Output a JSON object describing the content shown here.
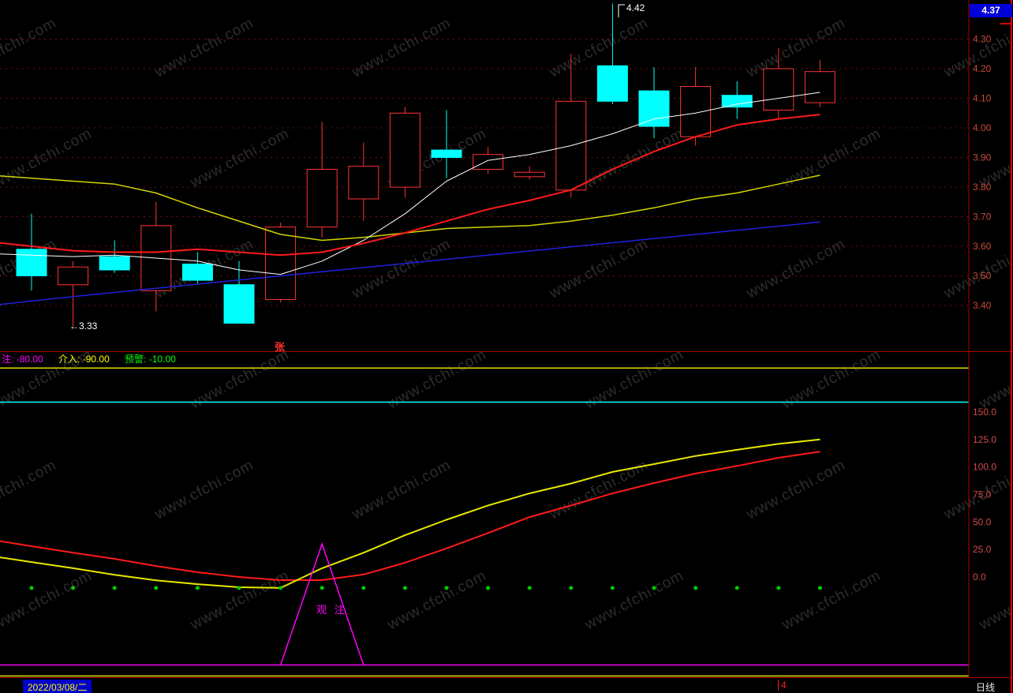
{
  "watermark": {
    "text": "www.cfchi.com"
  },
  "main_chart": {
    "current_price": "4.37",
    "current_price_bg": "#0000d8",
    "high_annotation": "4.42",
    "low_annotation": "←3.33",
    "event_mark": "张",
    "axis_labels": [
      "4.30",
      "4.20",
      "4.10",
      "4.00",
      "3.90",
      "3.80",
      "3.70",
      "3.60",
      "3.50",
      "3.40"
    ]
  },
  "indicator": {
    "header": [
      {
        "label": "注: -80.00",
        "color": "#ff00ff"
      },
      {
        "label": "介入: -90.00",
        "color": "#ffff00"
      },
      {
        "label": "预警: -10.00",
        "color": "#00ff00"
      }
    ],
    "axis_labels": [
      "150.0",
      "125.0",
      "100.0",
      "75.0",
      "50.0",
      "25.0",
      "0.0"
    ],
    "spike_label": "观 注"
  },
  "status_bar": {
    "date": "2022/03/08/二",
    "marker": "4",
    "period": "日线"
  },
  "chart_data": [
    {
      "type": "candlestick",
      "name": "daily-price-panel",
      "ylim": [
        3.33,
        4.45
      ],
      "y_ticks": [
        4.3,
        4.2,
        4.1,
        4.0,
        3.9,
        3.8,
        3.7,
        3.6,
        3.5,
        3.4
      ],
      "grid_color": "#6b1111",
      "axis_color": "#c84a3a",
      "up_color": "#ff3232",
      "down_color": "#00ffff",
      "high_point": {
        "index": 14,
        "price": 4.42
      },
      "low_point": {
        "index": 1,
        "price": 3.33
      },
      "candles": [
        {
          "open": 3.59,
          "high": 3.71,
          "low": 3.45,
          "close": 3.5
        },
        {
          "open": 3.47,
          "high": 3.55,
          "low": 3.33,
          "close": 3.53
        },
        {
          "open": 3.565,
          "high": 3.62,
          "low": 3.51,
          "close": 3.52
        },
        {
          "open": 3.45,
          "high": 3.75,
          "low": 3.38,
          "close": 3.67
        },
        {
          "open": 3.54,
          "high": 3.58,
          "low": 3.47,
          "close": 3.485
        },
        {
          "open": 3.47,
          "high": 3.55,
          "low": 3.34,
          "close": 3.34
        },
        {
          "open": 3.42,
          "high": 3.68,
          "low": 3.41,
          "close": 3.665
        },
        {
          "open": 3.665,
          "high": 4.02,
          "low": 3.63,
          "close": 3.86
        },
        {
          "open": 3.76,
          "high": 3.95,
          "low": 3.685,
          "close": 3.87
        },
        {
          "open": 3.8,
          "high": 4.07,
          "low": 3.765,
          "close": 4.05
        },
        {
          "open": 3.925,
          "high": 4.06,
          "low": 3.83,
          "close": 3.9
        },
        {
          "open": 3.86,
          "high": 3.935,
          "low": 3.845,
          "close": 3.91
        },
        {
          "open": 3.835,
          "high": 3.87,
          "low": 3.825,
          "close": 3.85
        },
        {
          "open": 3.79,
          "high": 4.25,
          "low": 3.765,
          "close": 4.09
        },
        {
          "open": 4.21,
          "high": 4.42,
          "low": 4.08,
          "close": 4.09
        },
        {
          "open": 4.125,
          "high": 4.205,
          "low": 3.965,
          "close": 4.005
        },
        {
          "open": 3.97,
          "high": 4.205,
          "low": 3.94,
          "close": 4.14
        },
        {
          "open": 4.11,
          "high": 4.157,
          "low": 4.03,
          "close": 4.07
        },
        {
          "open": 4.06,
          "high": 4.27,
          "low": 4.03,
          "close": 4.2
        },
        {
          "open": 4.085,
          "high": 4.23,
          "low": 4.07,
          "close": 4.19
        }
      ],
      "overlays": [
        {
          "name": "ma-yellow",
          "color": "#d4d400",
          "width": 1.5,
          "values": [
            3.83,
            3.82,
            3.81,
            3.78,
            3.73,
            3.685,
            3.64,
            3.62,
            3.63,
            3.645,
            3.66,
            3.665,
            3.67,
            3.685,
            3.705,
            3.73,
            3.76,
            3.78,
            3.81,
            3.84
          ]
        },
        {
          "name": "ma-blue",
          "color": "#2020dd",
          "width": 1.5,
          "values": [
            3.415,
            3.43,
            3.444,
            3.458,
            3.472,
            3.486,
            3.5,
            3.514,
            3.528,
            3.542,
            3.556,
            3.57,
            3.584,
            3.598,
            3.612,
            3.626,
            3.64,
            3.654,
            3.668,
            3.682
          ]
        },
        {
          "name": "ma-white",
          "color": "#ffffff",
          "width": 1,
          "values": [
            3.57,
            3.565,
            3.57,
            3.56,
            3.55,
            3.52,
            3.505,
            3.55,
            3.62,
            3.71,
            3.82,
            3.89,
            3.91,
            3.94,
            3.98,
            4.03,
            4.05,
            4.08,
            4.1,
            4.12
          ]
        },
        {
          "name": "ma-red",
          "color": "#ff1a1a",
          "width": 2,
          "values": [
            3.6,
            3.585,
            3.58,
            3.58,
            3.59,
            3.58,
            3.57,
            3.58,
            3.61,
            3.645,
            3.685,
            3.725,
            3.755,
            3.79,
            3.86,
            3.92,
            3.97,
            4.01,
            4.03,
            4.045
          ]
        }
      ]
    },
    {
      "type": "line",
      "name": "indicator-panel",
      "y_ticks": [
        150,
        125,
        100,
        75,
        50,
        25,
        0
      ],
      "axis_color": "#d24a4a",
      "series": [
        {
          "name": "slow-red",
          "color": "#ff1a1a",
          "values": [
            28,
            22,
            16.5,
            10,
            4.3,
            0,
            -2.9,
            -2.9,
            2.2,
            13,
            26,
            40,
            54.5,
            65,
            76,
            85.4,
            94,
            101,
            108.4,
            114
          ]
        },
        {
          "name": "fast-yellow",
          "color": "#e8e800",
          "values": [
            13.6,
            8,
            2,
            -3,
            -6.5,
            -9.3,
            -10,
            8,
            22,
            38,
            52,
            65,
            76,
            85,
            95.5,
            102.6,
            110,
            115.6,
            121,
            125
          ]
        }
      ],
      "hlines": [
        {
          "name": "upper-yellow-line",
          "value": 190,
          "color": "#d4d400"
        },
        {
          "name": "upper-cyan-line",
          "value": 159,
          "color": "#00ffff"
        },
        {
          "name": "zhu-line",
          "value": -80,
          "color": "#ff00ff"
        },
        {
          "name": "jieru-line",
          "value": -90,
          "color": "#d4d400"
        }
      ],
      "dots": {
        "name": "yujing-dots",
        "value": -10,
        "color": "#00cc00"
      },
      "spike": {
        "index": 7,
        "peak": 30,
        "base": -80,
        "color": "#ff00ff"
      }
    }
  ]
}
